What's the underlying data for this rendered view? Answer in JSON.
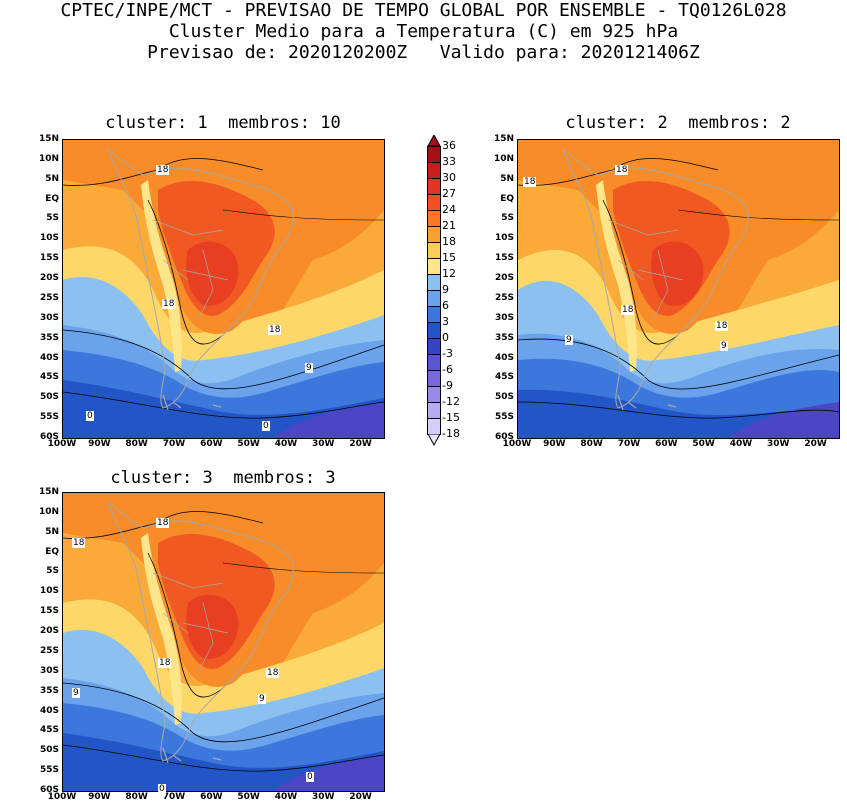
{
  "header": {
    "line1": "CPTEC/INPE/MCT - PREVISAO DE TEMPO GLOBAL POR ENSEMBLE - TQ0126L028",
    "line2": "Cluster Medio para a Temperatura (C) em 925 hPa",
    "line3": "Previsao de: 2020120200Z   Valido para: 2020121406Z"
  },
  "panels": [
    {
      "title": "cluster: 1  membros: 10"
    },
    {
      "title": "cluster: 2  membros: 2"
    },
    {
      "title": "cluster: 3  membros: 3"
    }
  ],
  "lat_labels": [
    "15N",
    "10N",
    "5N",
    "EQ",
    "5S",
    "10S",
    "15S",
    "20S",
    "25S",
    "30S",
    "35S",
    "40S",
    "45S",
    "50S",
    "55S",
    "60S"
  ],
  "lon_labels": [
    "100W",
    "90W",
    "80W",
    "70W",
    "60W",
    "50W",
    "40W",
    "30W",
    "20W"
  ],
  "contour_labels": {
    "p1": [
      "18",
      "18",
      "18",
      "9",
      "0",
      "0"
    ],
    "p2": [
      "18",
      "18",
      "18",
      "18",
      "9",
      "9"
    ],
    "p3": [
      "18",
      "18",
      "18",
      "18",
      "9",
      "9",
      "0",
      "0"
    ]
  },
  "colorbar": {
    "labels": [
      "36",
      "33",
      "30",
      "27",
      "24",
      "21",
      "18",
      "15",
      "12",
      "9",
      "6",
      "3",
      "0",
      "-3",
      "-6",
      "-9",
      "-12",
      "-15",
      "-18"
    ],
    "colors": [
      "#a50f15",
      "#c81e1e",
      "#e03520",
      "#f05022",
      "#f87828",
      "#f8a030",
      "#fccc55",
      "#fde68a",
      "#8cc0f0",
      "#6aa2ec",
      "#3c78dc",
      "#2256c6",
      "#3444c2",
      "#5a54d0",
      "#7868dc",
      "#9a88e6",
      "#b8aaee",
      "#d8ccf8"
    ],
    "palette": {
      "s27": "#e83f22",
      "s24": "#f05a22",
      "s21": "#f88c28",
      "s18": "#faaa38",
      "s15": "#fde68a",
      "s12": "#fdd868",
      "s9": "#8cc0f0",
      "s6": "#6aa2ec",
      "s3": "#3c78dc",
      "s0": "#2256c6",
      "sm3": "#4a46c6",
      "land": "#a8a8a8",
      "contour": "#000000"
    }
  }
}
